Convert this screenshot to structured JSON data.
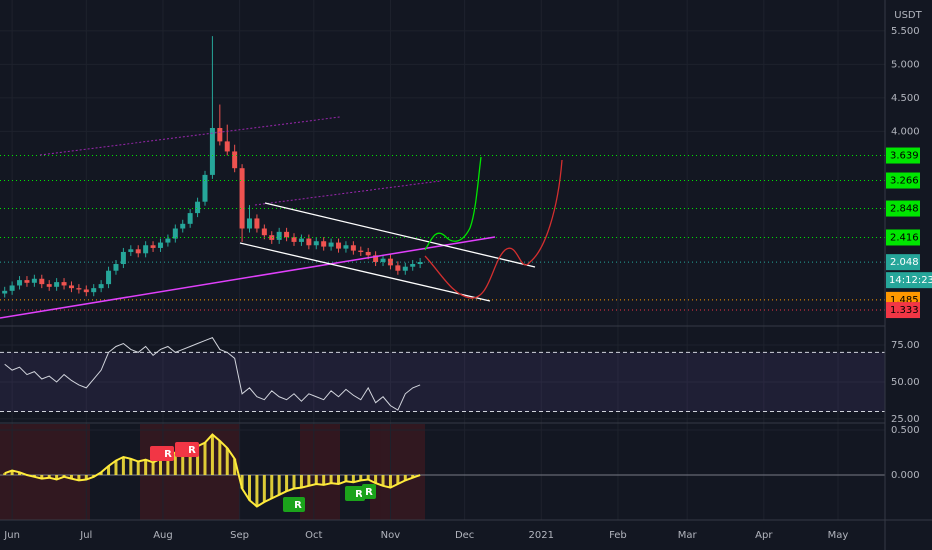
{
  "chart_data": [
    {
      "type": "candlestick",
      "unit": "USDT",
      "x": [
        -3,
        0,
        3,
        6,
        9,
        12,
        15,
        18,
        21,
        24,
        27,
        30,
        33,
        36,
        39,
        42,
        45,
        48,
        51,
        54,
        57,
        60,
        63,
        66,
        69,
        72,
        75,
        78,
        81,
        84,
        87,
        90,
        93,
        96,
        99,
        102,
        105,
        108,
        111,
        114,
        117,
        120,
        123,
        126,
        129,
        132,
        135,
        138,
        141,
        144,
        147,
        150,
        153,
        156,
        159,
        162,
        165
      ],
      "open": [
        1.58,
        1.62,
        1.7,
        1.78,
        1.74,
        1.8,
        1.72,
        1.68,
        1.75,
        1.7,
        1.66,
        1.64,
        1.6,
        1.66,
        1.72,
        1.92,
        2.02,
        2.2,
        2.24,
        2.18,
        2.3,
        2.26,
        2.34,
        2.4,
        2.55,
        2.62,
        2.78,
        2.95,
        3.35,
        4.05,
        3.85,
        3.7,
        3.45,
        2.55,
        2.7,
        2.55,
        2.45,
        2.38,
        2.5,
        2.42,
        2.35,
        2.4,
        2.3,
        2.36,
        2.28,
        2.34,
        2.25,
        2.3,
        2.22,
        2.2,
        2.15,
        2.05,
        2.1,
        2.0,
        1.92,
        1.98,
        2.02
      ],
      "high": [
        1.68,
        1.76,
        1.84,
        1.84,
        1.86,
        1.86,
        1.78,
        1.81,
        1.81,
        1.76,
        1.72,
        1.7,
        1.72,
        1.78,
        1.98,
        2.08,
        2.26,
        2.3,
        2.3,
        2.36,
        2.36,
        2.4,
        2.46,
        2.61,
        2.68,
        2.84,
        3.01,
        3.41,
        5.42,
        4.4,
        4.1,
        3.8,
        3.51,
        2.9,
        2.76,
        2.61,
        2.51,
        2.56,
        2.56,
        2.48,
        2.46,
        2.46,
        2.42,
        2.42,
        2.4,
        2.4,
        2.36,
        2.36,
        2.28,
        2.26,
        2.21,
        2.16,
        2.16,
        2.06,
        2.04,
        2.08,
        2.11
      ],
      "low": [
        1.52,
        1.56,
        1.64,
        1.68,
        1.68,
        1.66,
        1.62,
        1.62,
        1.64,
        1.6,
        1.58,
        1.54,
        1.54,
        1.6,
        1.66,
        1.86,
        1.96,
        2.14,
        2.12,
        2.12,
        2.2,
        2.2,
        2.28,
        2.34,
        2.49,
        2.56,
        2.72,
        2.89,
        3.29,
        3.79,
        3.64,
        3.39,
        2.35,
        2.49,
        2.49,
        2.39,
        2.32,
        2.32,
        2.36,
        2.29,
        2.29,
        2.24,
        2.24,
        2.22,
        2.22,
        2.19,
        2.19,
        2.16,
        2.14,
        2.09,
        1.99,
        1.99,
        1.94,
        1.86,
        1.86,
        1.92,
        1.96
      ],
      "close": [
        1.62,
        1.7,
        1.78,
        1.74,
        1.8,
        1.72,
        1.68,
        1.75,
        1.7,
        1.66,
        1.64,
        1.6,
        1.66,
        1.72,
        1.92,
        2.02,
        2.2,
        2.24,
        2.18,
        2.3,
        2.26,
        2.34,
        2.4,
        2.55,
        2.62,
        2.78,
        2.95,
        3.35,
        4.05,
        3.85,
        3.7,
        3.45,
        2.55,
        2.7,
        2.55,
        2.45,
        2.38,
        2.5,
        2.42,
        2.35,
        2.4,
        2.3,
        2.36,
        2.28,
        2.34,
        2.25,
        2.3,
        2.22,
        2.2,
        2.15,
        2.05,
        2.1,
        2.0,
        1.92,
        1.98,
        2.02,
        2.05
      ],
      "up_color": "#26a69a",
      "down_color": "#ef5350",
      "xlim": [
        -4.9,
        353
      ],
      "xticks": [
        {
          "value": 0,
          "label": "Jun"
        },
        {
          "value": 30,
          "label": "Jul"
        },
        {
          "value": 61,
          "label": "Aug"
        },
        {
          "value": 92,
          "label": "Sep"
        },
        {
          "value": 122,
          "label": "Oct"
        },
        {
          "value": 153,
          "label": "Nov"
        },
        {
          "value": 183,
          "label": "Dec"
        },
        {
          "value": 214,
          "label": "2021"
        },
        {
          "value": 245,
          "label": "Feb"
        },
        {
          "value": 273,
          "label": "Mar"
        },
        {
          "value": 304,
          "label": "Apr"
        },
        {
          "value": 334,
          "label": "May"
        }
      ],
      "ylim": [
        1.11,
        5.96
      ],
      "yticks": [
        {
          "value": 5.5,
          "label": "5.500"
        },
        {
          "value": 5.0,
          "label": "5.000"
        },
        {
          "value": 4.5,
          "label": "4.500"
        },
        {
          "value": 4.0,
          "label": "4.000"
        }
      ],
      "levels": [
        3.639,
        3.266,
        2.848,
        2.416,
        2.048,
        1.485,
        1.333
      ],
      "level_colors": [
        "#00e600",
        "#00e600",
        "#00e600",
        "#00e600",
        "#26a69a",
        "#ff9800",
        "#f23645"
      ],
      "countdown": "14:12:23",
      "grid": true
    },
    {
      "type": "line",
      "color": "#d1d4dc",
      "values": [
        62,
        58,
        60,
        55,
        57,
        52,
        54,
        50,
        55,
        51,
        48,
        46,
        52,
        58,
        70,
        74,
        76,
        72,
        70,
        74,
        68,
        72,
        74,
        70,
        72,
        74,
        76,
        78,
        80,
        72,
        70,
        66,
        42,
        46,
        40,
        38,
        44,
        40,
        38,
        42,
        37,
        42,
        40,
        38,
        44,
        40,
        45,
        41,
        38,
        46,
        36,
        40,
        34,
        31,
        42,
        46,
        48
      ],
      "ylim": [
        23.6,
        86.5
      ],
      "yticks": [
        {
          "value": 75,
          "label": "75.00"
        },
        {
          "value": 50,
          "label": "50.00"
        },
        {
          "value": 25,
          "label": "25.00"
        }
      ],
      "bands": [
        70,
        30
      ],
      "band_color": "#7e57c2"
    },
    {
      "type": "histogram",
      "color": "#ffeb3b",
      "values": [
        0.02,
        0.05,
        0.03,
        0.0,
        -0.02,
        -0.04,
        -0.03,
        -0.05,
        -0.02,
        -0.04,
        -0.06,
        -0.05,
        -0.02,
        0.03,
        0.1,
        0.16,
        0.2,
        0.18,
        0.15,
        0.17,
        0.14,
        0.18,
        0.22,
        0.25,
        0.28,
        0.3,
        0.32,
        0.36,
        0.45,
        0.38,
        0.3,
        0.18,
        -0.15,
        -0.28,
        -0.35,
        -0.3,
        -0.26,
        -0.22,
        -0.18,
        -0.15,
        -0.14,
        -0.12,
        -0.1,
        -0.11,
        -0.09,
        -0.1,
        -0.07,
        -0.08,
        -0.06,
        -0.05,
        -0.09,
        -0.12,
        -0.14,
        -0.1,
        -0.06,
        -0.03,
        0.0
      ],
      "ylim": [
        -0.5,
        0.567
      ],
      "yticks": [
        {
          "value": 0.5,
          "label": "0.500"
        },
        {
          "value": 0,
          "label": "0.000"
        }
      ],
      "annotations": [
        "R",
        "R",
        "R",
        "R",
        "R"
      ]
    }
  ]
}
